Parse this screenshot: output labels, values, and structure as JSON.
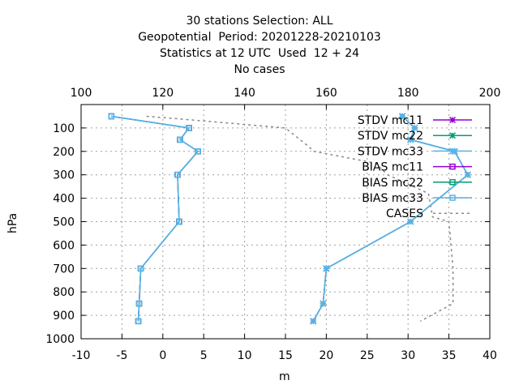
{
  "chart_data": {
    "type": "line",
    "title": [
      "30 stations Selection: ALL",
      "Geopotential  Period: 20201228-20210103",
      "Statistics at 12 UTC  Used  12 + 24",
      "No cases"
    ],
    "xlabel": "m",
    "ylabel": "hPa",
    "xlim": [
      -10,
      40
    ],
    "ylim": [
      1000,
      0
    ],
    "x2lim": [
      100,
      200
    ],
    "xticks": [
      "-10",
      "-5",
      "0",
      "5",
      "10",
      "15",
      "20",
      "25",
      "30",
      "35",
      "40"
    ],
    "yticks": [
      "100",
      "200",
      "300",
      "400",
      "500",
      "600",
      "700",
      "800",
      "900",
      "1000"
    ],
    "x2ticks": [
      "100",
      "120",
      "140",
      "160",
      "180",
      "200"
    ],
    "grid": true,
    "legend_position": "top-right",
    "levels": [
      50,
      100,
      150,
      200,
      300,
      500,
      700,
      850,
      925
    ],
    "series": [
      {
        "name": "STDV mc11",
        "color": "#9400d3",
        "marker": "x",
        "values": [
          29.3,
          30.8,
          30.3,
          35.7,
          37.3,
          30.3,
          20.0,
          19.6,
          18.4
        ]
      },
      {
        "name": "STDV mc22",
        "color": "#009e73",
        "marker": "x",
        "values": [
          29.3,
          30.8,
          30.3,
          35.7,
          37.3,
          30.3,
          20.0,
          19.6,
          18.4
        ]
      },
      {
        "name": "STDV mc33",
        "color": "#56b4e9",
        "marker": "x",
        "values": [
          29.3,
          30.8,
          30.3,
          35.7,
          37.3,
          30.3,
          20.0,
          19.6,
          18.4
        ]
      },
      {
        "name": "BIAS mc11",
        "color": "#9400d3",
        "marker": "square",
        "values": [
          -6.3,
          3.2,
          2.1,
          4.3,
          1.8,
          2.0,
          -2.7,
          -2.9,
          -3.0
        ]
      },
      {
        "name": "BIAS mc22",
        "color": "#009e73",
        "marker": "square",
        "values": [
          -6.3,
          3.2,
          2.1,
          4.3,
          1.8,
          2.0,
          -2.7,
          -2.9,
          -3.0
        ]
      },
      {
        "name": "BIAS mc33",
        "color": "#56b4e9",
        "marker": "square",
        "values": [
          -6.3,
          3.2,
          2.1,
          4.3,
          1.8,
          2.0,
          -2.7,
          -2.9,
          -3.0
        ]
      }
    ],
    "cases": {
      "name": "CASES",
      "color": "#888888",
      "axis": "top",
      "points": [
        {
          "x": 116,
          "y": 50
        },
        {
          "x": 130,
          "y": 70
        },
        {
          "x": 150,
          "y": 100
        },
        {
          "x": 155,
          "y": 170
        },
        {
          "x": 157,
          "y": 200
        },
        {
          "x": 172,
          "y": 250
        },
        {
          "x": 175,
          "y": 300
        },
        {
          "x": 185,
          "y": 380
        },
        {
          "x": 186,
          "y": 480
        },
        {
          "x": 190,
          "y": 500
        },
        {
          "x": 191,
          "y": 700
        },
        {
          "x": 191,
          "y": 850
        },
        {
          "x": 183,
          "y": 925
        }
      ]
    }
  }
}
